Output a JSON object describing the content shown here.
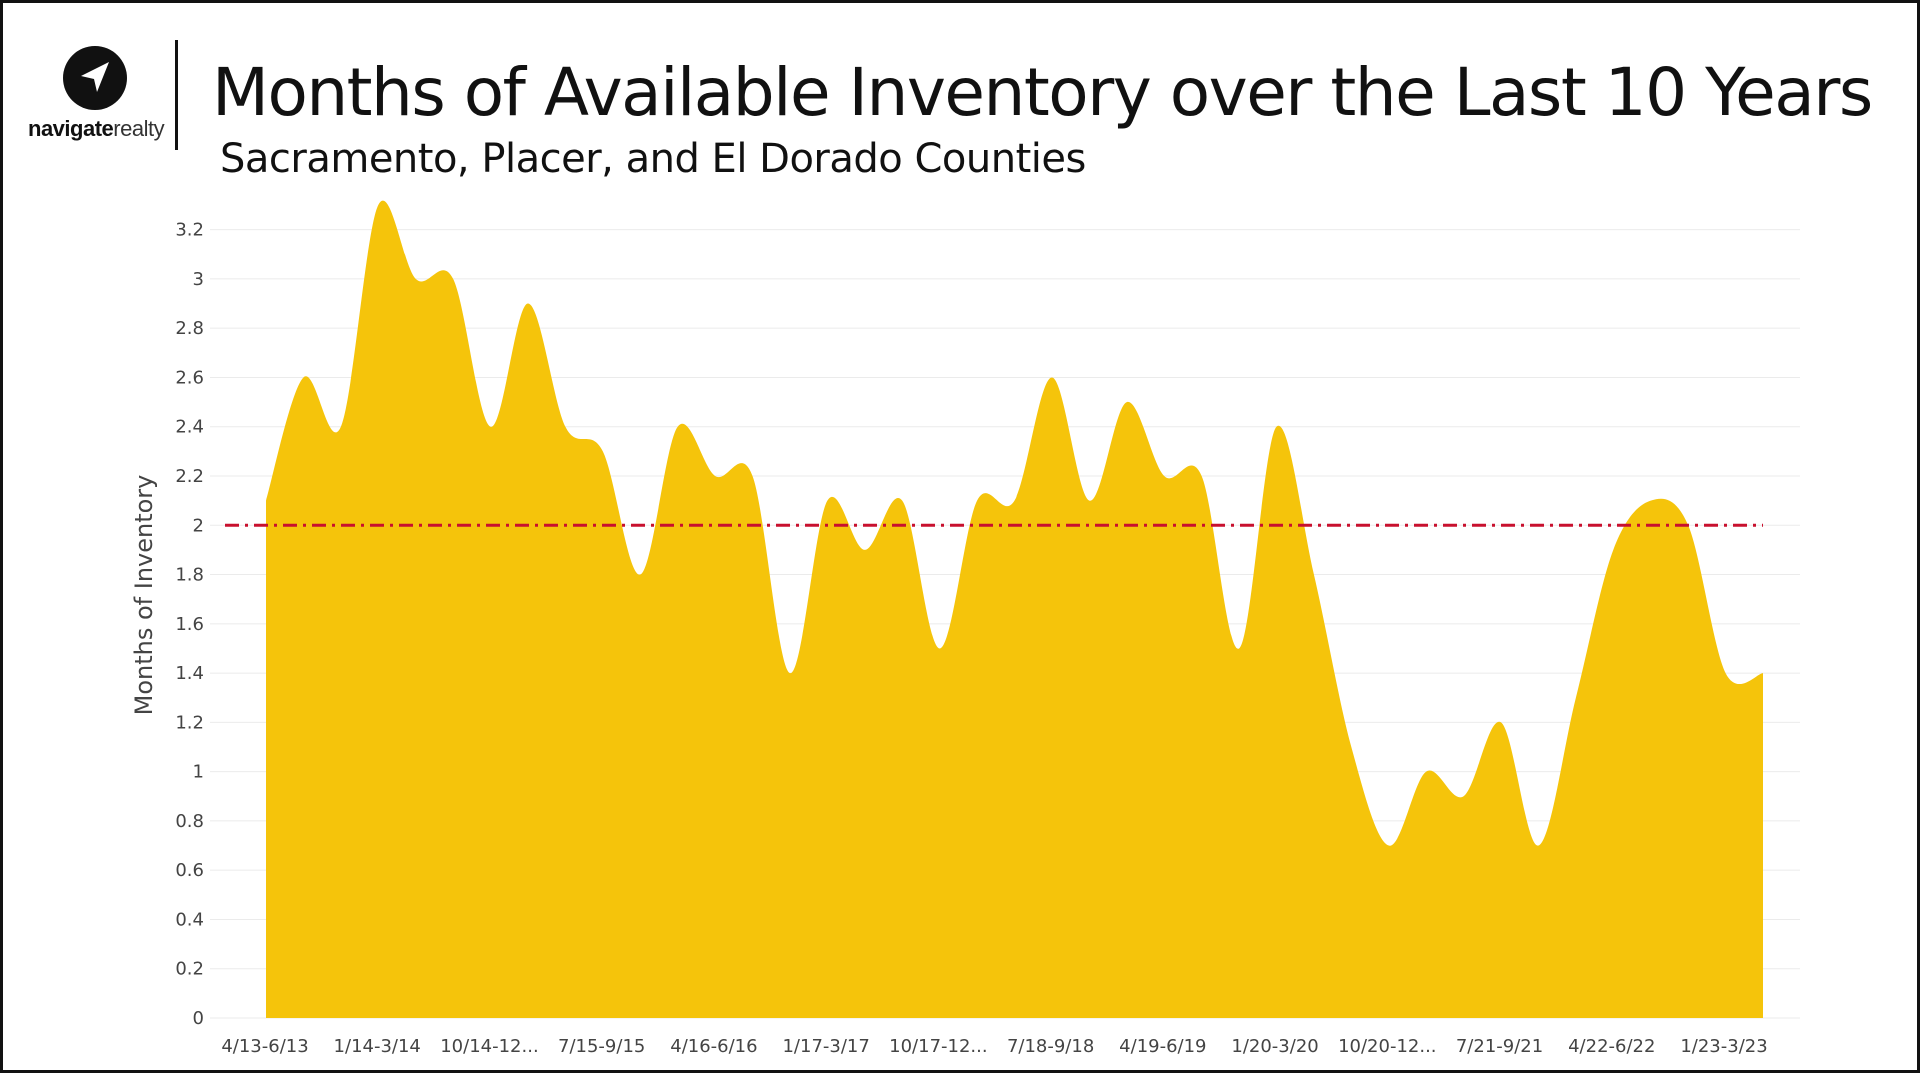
{
  "brand": {
    "name_bold": "navigate",
    "name_light": "realty",
    "icon": "navigation-arrow-icon"
  },
  "title": "Months of Available Inventory over the Last 10 Years",
  "subtitle": "Sacramento, Placer, and El Dorado Counties",
  "colors": {
    "area": "#F5C40B",
    "reference_line": "#C8102E",
    "grid": "#EBEBEB"
  },
  "chart_data": {
    "type": "area",
    "title": "Months of Available Inventory over the Last 10 Years",
    "subtitle": "Sacramento, Placer, and El Dorado Counties",
    "xlabel": "",
    "ylabel": "Months of Inventory",
    "ylim": [
      0,
      3.3
    ],
    "yticks": [
      0,
      0.2,
      0.4,
      0.6,
      0.8,
      1,
      1.2,
      1.4,
      1.6,
      1.8,
      2,
      2.2,
      2.4,
      2.6,
      2.8,
      3,
      3.2
    ],
    "ytick_labels": [
      "0",
      "0.2",
      "0.4",
      "0.6",
      "0.8",
      "1",
      "1.2",
      "1.4",
      "1.6",
      "1.8",
      "2",
      "2.2",
      "2.4",
      "2.6",
      "2.8",
      "3",
      "3.2"
    ],
    "grid": true,
    "reference_line": {
      "y": 2,
      "style": "dash-dot"
    },
    "x_tick_labels": [
      "4/13-6/13",
      "1/14-3/14",
      "10/14-12...",
      "7/15-9/15",
      "4/16-6/16",
      "1/17-3/17",
      "10/17-12...",
      "7/18-9/18",
      "4/19-6/19",
      "1/20-3/20",
      "10/20-12...",
      "7/21-9/21",
      "4/22-6/22",
      "1/23-3/23"
    ],
    "series": [
      {
        "values": [
          2.1,
          2.6,
          2.4,
          3.3,
          3.0,
          3.0,
          2.4,
          2.9,
          2.4,
          2.3,
          1.8,
          2.4,
          2.2,
          2.2,
          1.4,
          2.1,
          1.9,
          2.1,
          1.5,
          2.1,
          2.1,
          2.6,
          2.1,
          2.5,
          2.2,
          2.2,
          1.5,
          2.4,
          1.8,
          1.1,
          0.7,
          1.0,
          0.9,
          1.2,
          0.7,
          1.3,
          1.9,
          2.1,
          2.0,
          1.4,
          1.4
        ]
      }
    ]
  }
}
